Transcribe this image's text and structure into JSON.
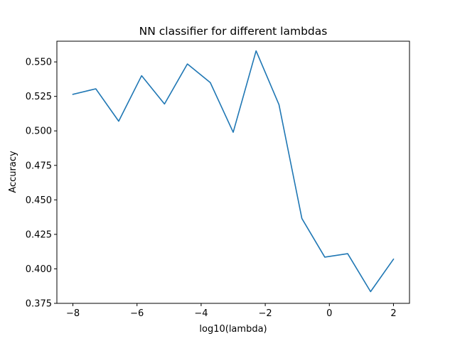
{
  "chart_data": {
    "type": "line",
    "title": "NN classifier for different lambdas",
    "xlabel": "log10(lambda)",
    "ylabel": "Accuracy",
    "xlim": [
      -8.5,
      2.5
    ],
    "ylim": [
      0.375,
      0.565
    ],
    "grid": false,
    "x_ticks": [
      -8,
      -6,
      -4,
      -2,
      0,
      2
    ],
    "x_tick_labels": [
      "−8",
      "−6",
      "−4",
      "−2",
      "0",
      "2"
    ],
    "y_ticks": [
      0.375,
      0.4,
      0.425,
      0.45,
      0.475,
      0.5,
      0.525,
      0.55
    ],
    "y_tick_labels": [
      "0.375",
      "0.400",
      "0.425",
      "0.450",
      "0.475",
      "0.500",
      "0.525",
      "0.550"
    ],
    "series": [
      {
        "color": "#1f77b4",
        "x": [
          -8.0,
          -7.2857,
          -6.5714,
          -5.8571,
          -5.1429,
          -4.4286,
          -3.7143,
          -3.0,
          -2.2857,
          -1.5714,
          -0.8571,
          -0.1429,
          0.5714,
          1.2857,
          2.0
        ],
        "y": [
          0.5265,
          0.5305,
          0.507,
          0.54,
          0.5195,
          0.5485,
          0.535,
          0.499,
          0.558,
          0.519,
          0.4365,
          0.4085,
          0.411,
          0.3835,
          0.407
        ]
      }
    ]
  }
}
